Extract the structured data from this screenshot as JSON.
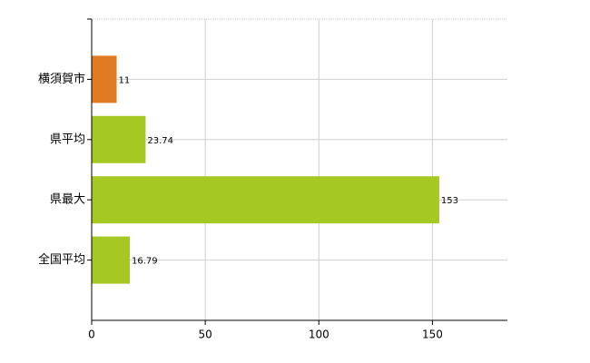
{
  "chart_data": {
    "type": "bar",
    "orientation": "horizontal",
    "categories": [
      "横須賀市",
      "県平均",
      "県最大",
      "全国平均"
    ],
    "values": [
      11,
      23.74,
      153,
      16.79
    ],
    "colors": [
      "#e07b24",
      "#a5c922",
      "#a5c922",
      "#a5c922"
    ],
    "xlim": [
      0,
      183
    ],
    "xticks": [
      0,
      50,
      100,
      150
    ],
    "grid": true
  }
}
